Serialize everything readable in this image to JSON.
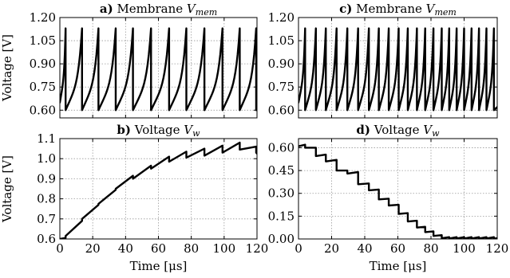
{
  "chart_data": [
    {
      "id": "a",
      "type": "line",
      "title_letter": "a)",
      "title_text": "Membrane ",
      "title_var": "V",
      "title_sub": "mem",
      "ylabel": "Voltage [V]",
      "xlabel": "",
      "xlim": [
        0,
        120
      ],
      "ylim": [
        0.55,
        1.2
      ],
      "xticks": [
        0,
        20,
        40,
        60,
        80,
        100,
        120
      ],
      "yticks": [
        0.6,
        0.75,
        0.9,
        1.05,
        1.2
      ],
      "ytick_labels": [
        "0.60",
        "0.75",
        "0.90",
        "1.05",
        "1.20"
      ],
      "show_xtick_labels": false,
      "grid": true,
      "trace": {
        "kind": "spikes",
        "v_reset": 0.6,
        "v_peak": 1.13,
        "spike_times": [
          3.5,
          13.5,
          23.5,
          34,
          44.5,
          55.5,
          66.5,
          77,
          88,
          99,
          109.5,
          119.5
        ]
      }
    },
    {
      "id": "b",
      "type": "line",
      "title_letter": "b)",
      "title_text": "Voltage ",
      "title_var": "V",
      "title_sub": "w",
      "ylabel": "Voltage [V]",
      "xlabel": "Time [μs]",
      "xlim": [
        0,
        120
      ],
      "ylim": [
        0.6,
        1.1
      ],
      "xticks": [
        0,
        20,
        40,
        60,
        80,
        100,
        120
      ],
      "xtick_labels": [
        "0",
        "20",
        "40",
        "60",
        "80",
        "100",
        "120"
      ],
      "yticks": [
        0.6,
        0.7,
        0.8,
        0.9,
        1.0,
        1.1
      ],
      "ytick_labels": [
        "0.6",
        "0.7",
        "0.8",
        "0.9",
        "1.0",
        "1.1"
      ],
      "show_xtick_labels": true,
      "grid": true,
      "trace": {
        "kind": "steps",
        "start": 0.6,
        "events": [
          {
            "t": 3.5,
            "v0": 0.605,
            "v1": 0.615
          },
          {
            "t": 13.5,
            "v0": 0.69,
            "v1": 0.7
          },
          {
            "t": 23.5,
            "v0": 0.77,
            "v1": 0.775
          },
          {
            "t": 34,
            "v0": 0.845,
            "v1": 0.85
          },
          {
            "t": 44.5,
            "v0": 0.915,
            "v1": 0.9
          },
          {
            "t": 55.5,
            "v0": 0.965,
            "v1": 0.95
          },
          {
            "t": 66.5,
            "v0": 1.01,
            "v1": 0.985
          },
          {
            "t": 77,
            "v0": 1.035,
            "v1": 1.005
          },
          {
            "t": 88,
            "v0": 1.05,
            "v1": 1.015
          },
          {
            "t": 99,
            "v0": 1.065,
            "v1": 1.03
          },
          {
            "t": 109.5,
            "v0": 1.08,
            "v1": 1.045
          },
          {
            "t": 119.5,
            "v0": 1.06,
            "v1": 1.03
          }
        ]
      }
    },
    {
      "id": "c",
      "type": "line",
      "title_letter": "c)",
      "title_text": "Membrane ",
      "title_var": "V",
      "title_sub": "mem",
      "ylabel": "",
      "xlabel": "",
      "xlim": [
        0,
        120
      ],
      "ylim": [
        0.55,
        1.2
      ],
      "xticks": [
        0,
        20,
        40,
        60,
        80,
        100,
        120
      ],
      "yticks": [
        0.6,
        0.75,
        0.9,
        1.05,
        1.2
      ],
      "ytick_labels": [
        "0.60",
        "0.75",
        "0.90",
        "1.05",
        "1.20"
      ],
      "show_xtick_labels": false,
      "grid": true,
      "trace": {
        "kind": "spikes",
        "v_reset": 0.6,
        "v_peak": 1.13,
        "spike_times": [
          4,
          10.5,
          16.5,
          23,
          29.5,
          36,
          42.5,
          48.5,
          54.5,
          60.5,
          66,
          71.5,
          76.5,
          81.5,
          86.5,
          91,
          95.5,
          100,
          104.5,
          109,
          113.5,
          118
        ]
      }
    },
    {
      "id": "d",
      "type": "line",
      "title_letter": "d)",
      "title_text": "Voltage ",
      "title_var": "V",
      "title_sub": "w",
      "ylabel": "",
      "xlabel": "Time [μs]",
      "xlim": [
        0,
        120
      ],
      "ylim": [
        0.0,
        0.66
      ],
      "xticks": [
        0,
        20,
        40,
        60,
        80,
        100,
        120
      ],
      "xtick_labels": [
        "0",
        "20",
        "40",
        "60",
        "80",
        "100",
        "120"
      ],
      "yticks": [
        0.0,
        0.15,
        0.3,
        0.45,
        0.6
      ],
      "ytick_labels": [
        "0.00",
        "0.15",
        "0.30",
        "0.45",
        "0.60"
      ],
      "show_xtick_labels": true,
      "grid": true,
      "trace": {
        "kind": "steps",
        "start": 0.61,
        "events": [
          {
            "t": 4,
            "v0": 0.62,
            "v1": 0.6
          },
          {
            "t": 10.5,
            "v0": 0.6,
            "v1": 0.545
          },
          {
            "t": 16.5,
            "v0": 0.555,
            "v1": 0.51
          },
          {
            "t": 23,
            "v0": 0.52,
            "v1": 0.45
          },
          {
            "t": 29.5,
            "v0": 0.45,
            "v1": 0.43
          },
          {
            "t": 36,
            "v0": 0.44,
            "v1": 0.36
          },
          {
            "t": 42.5,
            "v0": 0.365,
            "v1": 0.32
          },
          {
            "t": 48.5,
            "v0": 0.325,
            "v1": 0.26
          },
          {
            "t": 54.5,
            "v0": 0.265,
            "v1": 0.22
          },
          {
            "t": 60.5,
            "v0": 0.225,
            "v1": 0.165
          },
          {
            "t": 66,
            "v0": 0.17,
            "v1": 0.115
          },
          {
            "t": 71.5,
            "v0": 0.12,
            "v1": 0.075
          },
          {
            "t": 76.5,
            "v0": 0.08,
            "v1": 0.045
          },
          {
            "t": 81.5,
            "v0": 0.05,
            "v1": 0.02
          },
          {
            "t": 86.5,
            "v0": 0.025,
            "v1": 0.005
          },
          {
            "t": 91,
            "v0": 0.012,
            "v1": 0.003
          },
          {
            "t": 95.5,
            "v0": 0.012,
            "v1": 0.003
          },
          {
            "t": 100,
            "v0": 0.012,
            "v1": 0.003
          },
          {
            "t": 104.5,
            "v0": 0.012,
            "v1": 0.003
          },
          {
            "t": 109,
            "v0": 0.012,
            "v1": 0.003
          },
          {
            "t": 113.5,
            "v0": 0.012,
            "v1": 0.003
          },
          {
            "t": 118,
            "v0": 0.012,
            "v1": 0.003
          }
        ],
        "end": 0.005
      }
    }
  ]
}
